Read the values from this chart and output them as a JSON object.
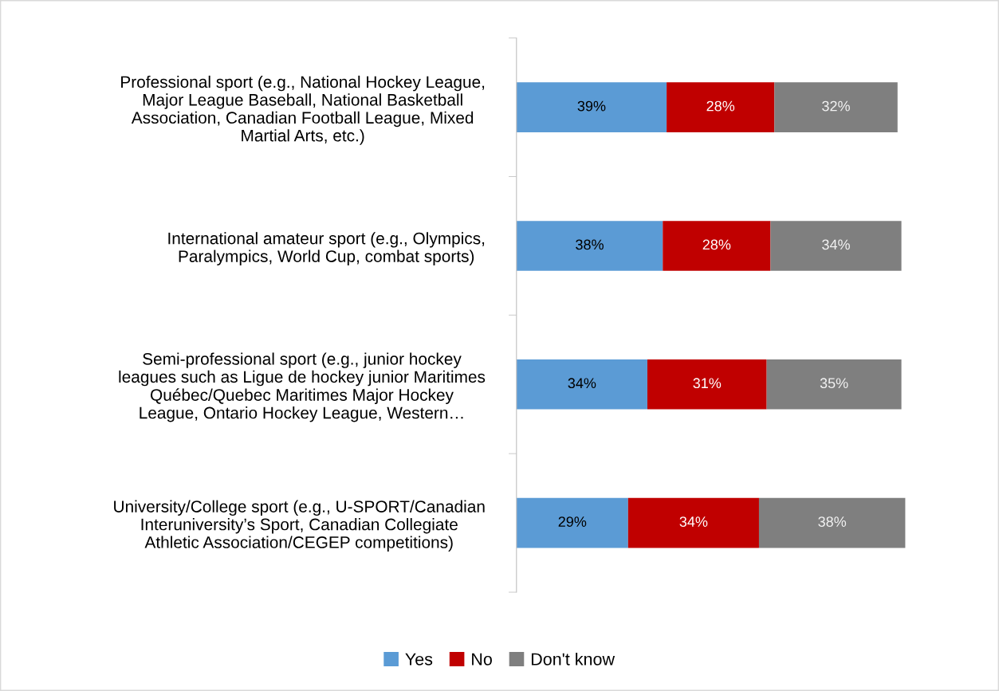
{
  "chart_data": {
    "type": "bar",
    "orientation": "horizontal",
    "stacked": true,
    "grid": false,
    "legend": "bottom",
    "categories": [
      "Professional sport (e.g., National Hockey League,\nMajor League Baseball, National Basketball\nAssociation, Canadian Football League, Mixed\nMartial Arts, etc.)",
      "International amateur sport (e.g., Olympics,\nParalympics, World Cup, combat sports)",
      "Semi-professional sport (e.g., junior hockey\nleagues such as Ligue de hockey junior Maritimes\nQuébec/Quebec Maritimes Major Hockey\nLeague, Ontario Hockey League, Western…",
      "University/College sport (e.g., U-SPORT/Canadian\nInteruniversity’s Sport, Canadian Collegiate\nAthletic Association/CEGEP competitions)"
    ],
    "series": [
      {
        "name": "Yes",
        "color": "#5b9bd5",
        "values": [
          39,
          38,
          34,
          29
        ],
        "value_labels": [
          "39%",
          "38%",
          "34%",
          "29%"
        ]
      },
      {
        "name": "No",
        "color": "#c00000",
        "values": [
          28,
          28,
          31,
          34
        ],
        "value_labels": [
          "28%",
          "28%",
          "31%",
          "34%"
        ]
      },
      {
        "name": "Don't know",
        "color": "#7f7f7f",
        "values": [
          32,
          34,
          35,
          38
        ],
        "value_labels": [
          "32%",
          "34%",
          "35%",
          "38%"
        ]
      }
    ]
  }
}
